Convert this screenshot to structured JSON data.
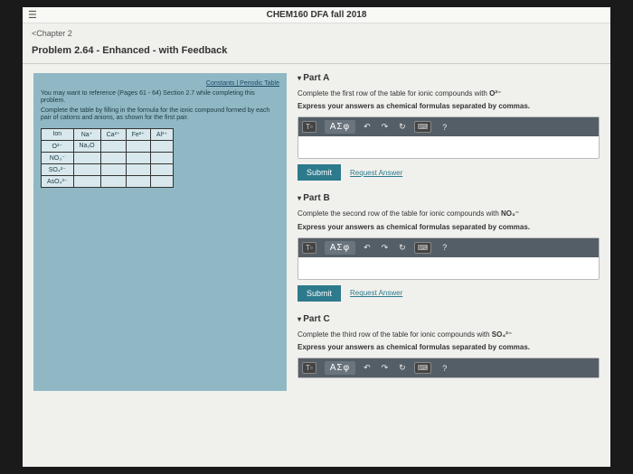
{
  "header": {
    "title": "CHEM160 DFA fall 2018"
  },
  "breadcrumb": "<Chapter 2",
  "problem_title": "Problem 2.64 - Enhanced - with Feedback",
  "left": {
    "links": "Constants  |  Periodic Table",
    "l1": "You may want to reference (Pages 61 - 64) Section 2.7 while completing this problem.",
    "l2": "Complete the table by filling in the formula for the ionic compound formed by each pair of cations and anions, as shown for the first pair.",
    "th_ion": "Ion",
    "th_na": "Na⁺",
    "th_ca": "Ca²⁺",
    "th_fe": "Fe²⁺",
    "th_al": "Al³⁺",
    "r1": "O²⁻",
    "r1v": "Na₂O",
    "r2": "NO₃⁻",
    "r3": "SO₄²⁻",
    "r4": "AsO₄³⁻"
  },
  "partA": {
    "title": "Part A",
    "instr1a": "Complete the first row of the table for ionic compounds with ",
    "instr1b": "O²⁻",
    "instr2": "Express your answers as chemical formulas separated by commas."
  },
  "partB": {
    "title": "Part B",
    "instr1a": "Complete the second row of the table for ionic compounds with ",
    "instr1b": "NO₃⁻",
    "instr2": "Express your answers as chemical formulas separated by commas."
  },
  "partC": {
    "title": "Part C",
    "instr1a": "Complete the third row of the table for ionic compounds with ",
    "instr1b": "SO₄²⁻",
    "instr2": "Express your answers as chemical formulas separated by commas."
  },
  "toolbar": {
    "sigma": "ΑΣφ",
    "undo": "↶",
    "redo": "↷",
    "reset": "↻",
    "kb": "⌨",
    "help": "?"
  },
  "submit": "Submit",
  "request": "Request Answer"
}
